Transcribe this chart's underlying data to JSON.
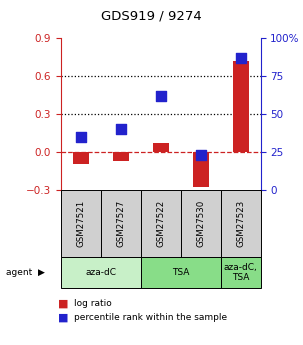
{
  "title": "GDS919 / 9274",
  "samples": [
    "GSM27521",
    "GSM27527",
    "GSM27522",
    "GSM27530",
    "GSM27523"
  ],
  "log_ratio": [
    -0.1,
    -0.07,
    0.07,
    -0.28,
    0.72
  ],
  "percentile_rank": [
    35,
    40,
    62,
    23,
    87
  ],
  "ylim_left": [
    -0.3,
    0.9
  ],
  "ylim_right": [
    0,
    100
  ],
  "left_ticks": [
    -0.3,
    0.0,
    0.3,
    0.6,
    0.9
  ],
  "right_ticks": [
    0,
    25,
    50,
    75,
    100
  ],
  "dotted_lines": [
    0.3,
    0.6
  ],
  "bar_color": "#cc2222",
  "square_color": "#2222cc",
  "bar_width": 0.4,
  "square_size": 45,
  "background_color": "#ffffff",
  "sample_box_color": "#d0d0d0",
  "agent_groups": [
    {
      "label": "aza-dC",
      "start": 0,
      "end": 2,
      "color": "#c8f0c8"
    },
    {
      "label": "TSA",
      "start": 2,
      "end": 4,
      "color": "#88dd88"
    },
    {
      "label": "aza-dC,\nTSA",
      "start": 4,
      "end": 5,
      "color": "#88dd88"
    }
  ]
}
